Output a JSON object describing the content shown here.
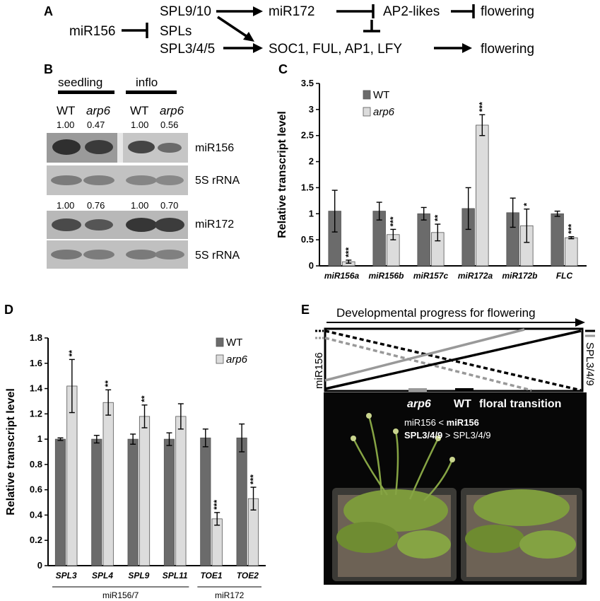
{
  "panel_a": {
    "letter": "A",
    "mir156": "miR156",
    "spl910": "SPL9/10",
    "spls": "SPLs",
    "spl345": "SPL3/4/5",
    "mir172": "miR172",
    "ap2": "AP2-likes",
    "flowering1": "flowering",
    "targets": "SOC1, FUL, AP1, LFY",
    "flowering2": "flowering"
  },
  "panel_b": {
    "letter": "B",
    "seedling": "seedling",
    "inflo": "inflo",
    "lanes": [
      "WT",
      "arp6",
      "WT",
      "arp6"
    ],
    "mir156_values": [
      "1.00",
      "0.47",
      "1.00",
      "0.56"
    ],
    "mir172_values": [
      "1.00",
      "0.76",
      "1.00",
      "0.70"
    ],
    "blots": [
      "miR156",
      "5S rRNA",
      "miR172",
      "5S rRNA"
    ]
  },
  "panel_e": {
    "letter": "E",
    "arrow_title": "Developmental progress for flowering",
    "left_label": "miR156",
    "right_label": "SPL3/4/9",
    "arp6_label": "arp6",
    "wt_label": "WT",
    "floral_label": "floral transition",
    "line1": "miR156",
    "line1_cmp": "<",
    "line1_bold": "miR156",
    "line2_bold": "SPL3/4/9",
    "line2_cmp": ">",
    "line2": "SPL3/4/9"
  },
  "colors": {
    "wt": "#6b6b6b",
    "arp6": "#dcdcdc",
    "grey_line": "#999999"
  },
  "chart_data": [
    {
      "panel": "C",
      "type": "bar",
      "ylabel": "Relative transcript level",
      "ylim": [
        0,
        3.5
      ],
      "yticks": [
        "0",
        "0.5",
        "1",
        "1.5",
        "2",
        "2.5",
        "3",
        "3.5"
      ],
      "categories": [
        "miR156a",
        "miR156b",
        "miR157c",
        "miR172a",
        "miR172b",
        "FLC"
      ],
      "series": [
        {
          "name": "WT",
          "values": [
            1.05,
            1.05,
            1.0,
            1.1,
            1.02,
            1.0
          ],
          "errors": [
            0.4,
            0.17,
            0.12,
            0.4,
            0.28,
            0.05
          ]
        },
        {
          "name": "arp6",
          "values": [
            0.08,
            0.6,
            0.64,
            2.7,
            0.77,
            0.54
          ],
          "errors": [
            0.03,
            0.1,
            0.16,
            0.2,
            0.32,
            0.02
          ]
        }
      ],
      "significance": [
        "***",
        "***",
        "**",
        "***",
        "*",
        "***"
      ]
    },
    {
      "panel": "D",
      "type": "bar",
      "ylabel": "Relative transcript level",
      "ylim": [
        0,
        1.8
      ],
      "yticks": [
        "0",
        "0.2",
        "0.4",
        "0.6",
        "0.8",
        "1",
        "1.2",
        "1.4",
        "1.6",
        "1.8"
      ],
      "categories": [
        "SPL3",
        "SPL4",
        "SPL9",
        "SPL11",
        "TOE1",
        "TOE2"
      ],
      "series": [
        {
          "name": "WT",
          "values": [
            1.0,
            1.0,
            1.0,
            1.0,
            1.01,
            1.01
          ],
          "errors": [
            0.01,
            0.03,
            0.04,
            0.05,
            0.07,
            0.11
          ]
        },
        {
          "name": "arp6",
          "values": [
            1.42,
            1.29,
            1.18,
            1.18,
            0.37,
            0.53
          ],
          "errors": [
            0.21,
            0.1,
            0.09,
            0.1,
            0.05,
            0.09
          ]
        }
      ],
      "significance": [
        "**",
        "**",
        "**",
        "",
        "***",
        "***"
      ],
      "groups": [
        {
          "label": "miR156/7"
        },
        {
          "label": "miR172"
        }
      ]
    }
  ]
}
